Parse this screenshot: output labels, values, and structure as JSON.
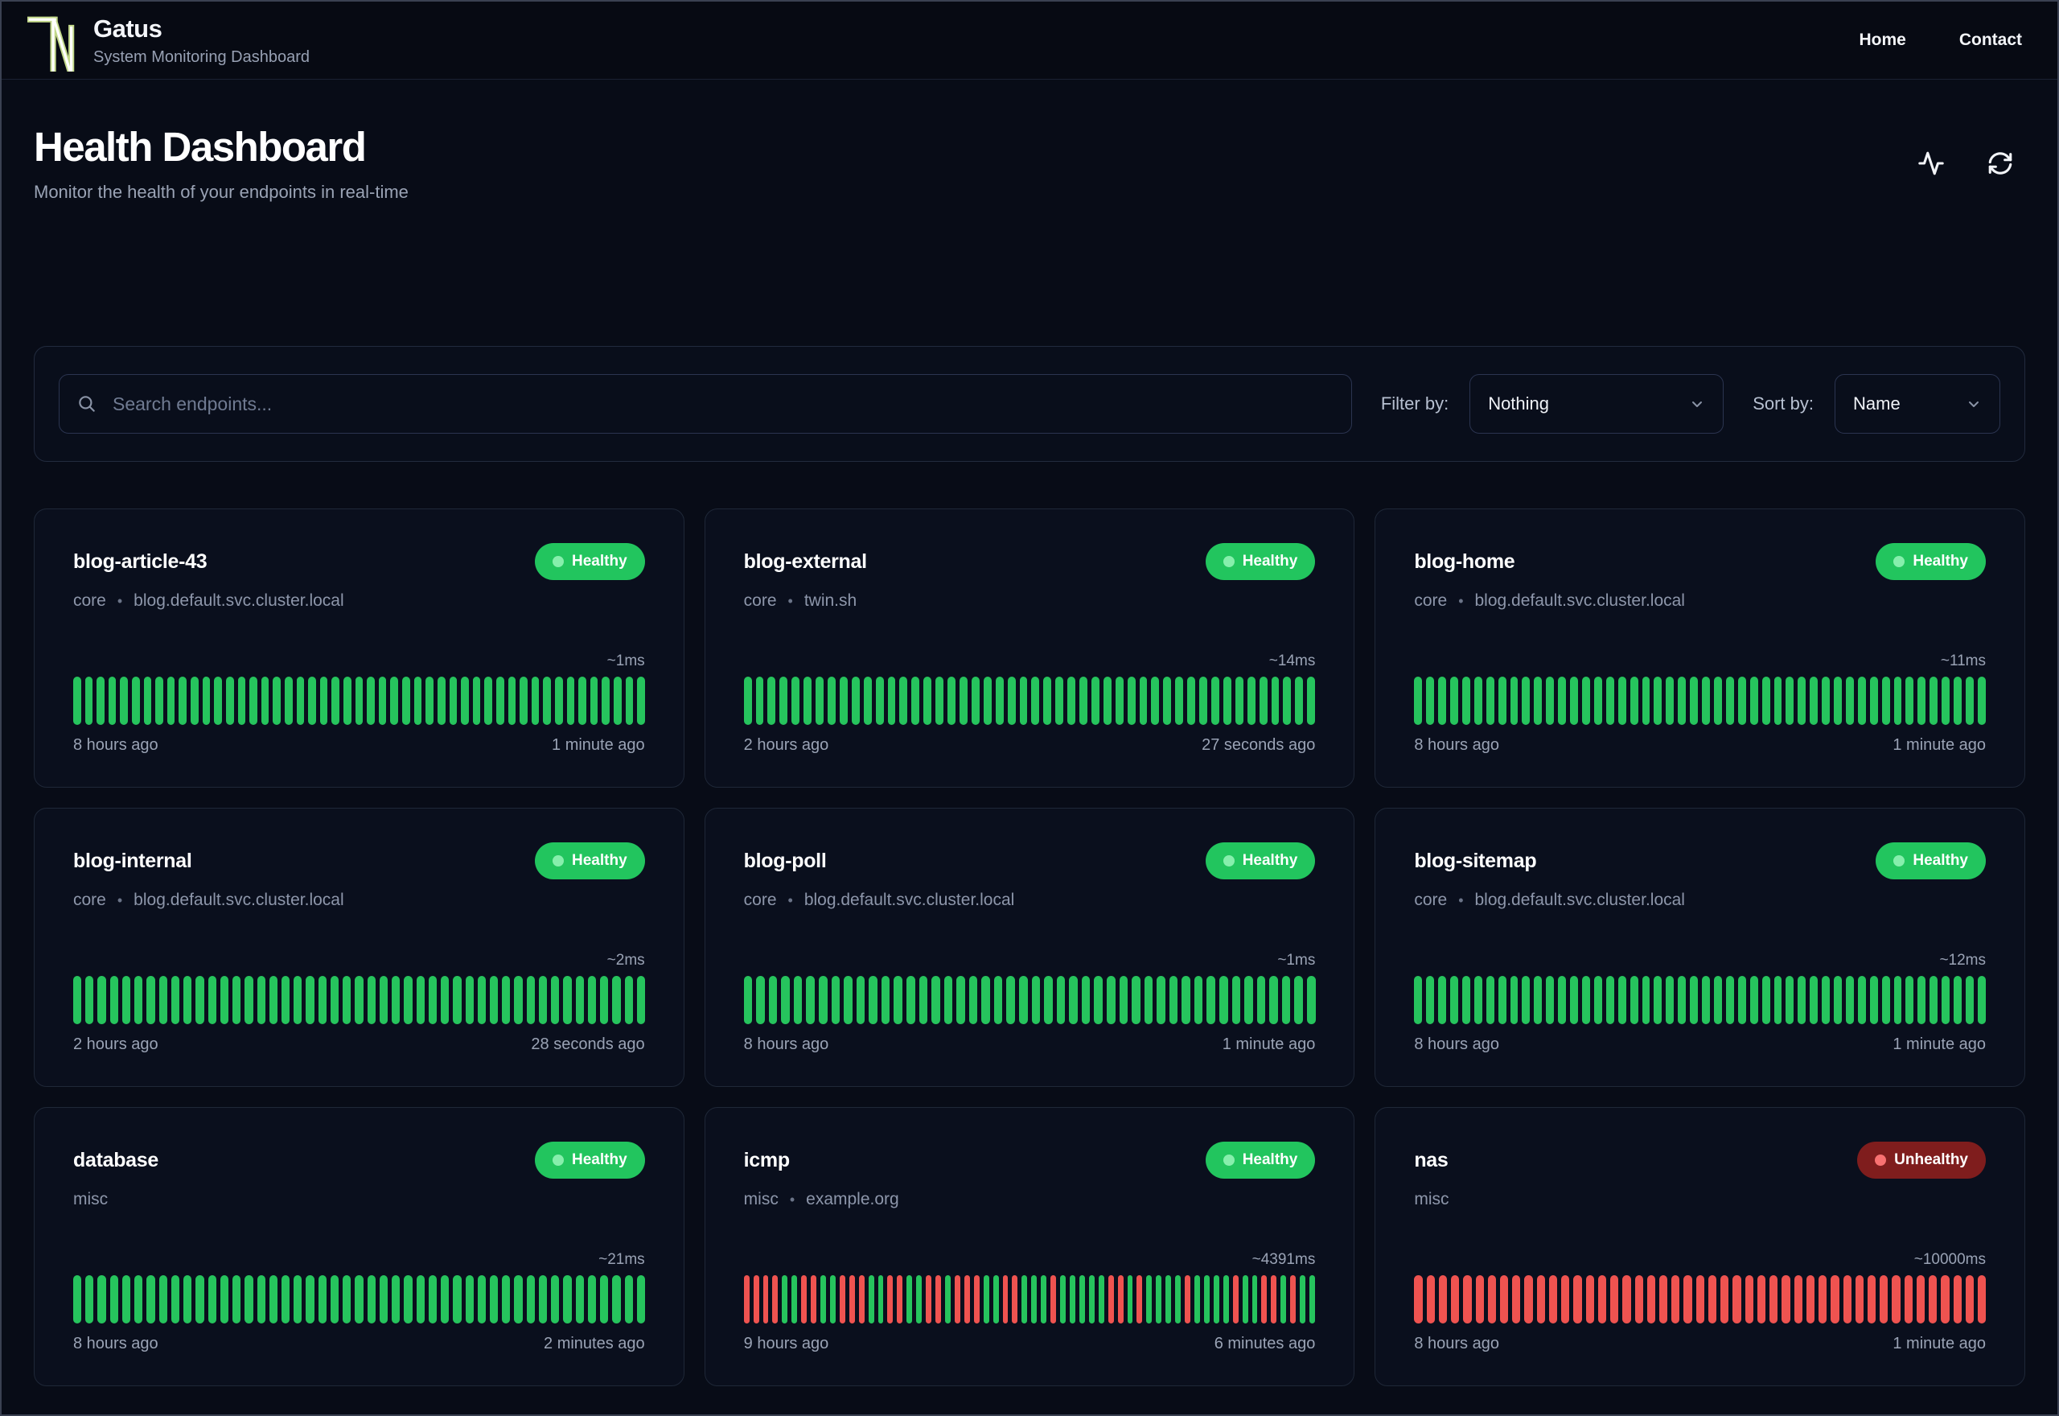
{
  "brand": {
    "name": "Gatus",
    "tagline": "System Monitoring Dashboard"
  },
  "nav": [
    {
      "label": "Home"
    },
    {
      "label": "Contact"
    }
  ],
  "page": {
    "title": "Health Dashboard",
    "subtitle": "Monitor the health of your endpoints in real-time"
  },
  "icons": {
    "logo": "gatus-tn-logo",
    "header": [
      "activity-icon",
      "refresh-icon"
    ],
    "search": "search-icon",
    "select_chevron": "chevron-down-icon"
  },
  "toolbar": {
    "search_placeholder": "Search endpoints...",
    "filter_label": "Filter by:",
    "filter_value": "Nothing",
    "sort_label": "Sort by:",
    "sort_value": "Name"
  },
  "meta_separator": "•",
  "colors": {
    "healthy_badge_bg": "#22c55e",
    "healthy_dot": "#86efac",
    "unhealthy_badge_bg": "#7f1d1d",
    "unhealthy_dot": "#f87171",
    "bar_up": "#26c45d",
    "bar_down": "#ef5350",
    "logo_outline": "#c3d98b"
  },
  "cards": [
    {
      "name": "blog-article-43",
      "status": "Healthy",
      "group": "core",
      "target": "blog.default.svc.cluster.local",
      "response_time": "~1ms",
      "oldest": "8 hours ago",
      "newest": "1 minute ago",
      "history": "ggggggggggggggggggggggggggggggggggggggggggggggggg"
    },
    {
      "name": "blog-external",
      "status": "Healthy",
      "group": "core",
      "target": "twin.sh",
      "response_time": "~14ms",
      "oldest": "2 hours ago",
      "newest": "27 seconds ago",
      "history": "gggggggggggggggggggggggggggggggggggggggggggggggg"
    },
    {
      "name": "blog-home",
      "status": "Healthy",
      "group": "core",
      "target": "blog.default.svc.cluster.local",
      "response_time": "~11ms",
      "oldest": "8 hours ago",
      "newest": "1 minute ago",
      "history": "gggggggggggggggggggggggggggggggggggggggggggggggg"
    },
    {
      "name": "blog-internal",
      "status": "Healthy",
      "group": "core",
      "target": "blog.default.svc.cluster.local",
      "response_time": "~2ms",
      "oldest": "2 hours ago",
      "newest": "28 seconds ago",
      "history": "ggggggggggggggggggggggggggggggggggggggggggggggg"
    },
    {
      "name": "blog-poll",
      "status": "Healthy",
      "group": "core",
      "target": "blog.default.svc.cluster.local",
      "response_time": "~1ms",
      "oldest": "8 hours ago",
      "newest": "1 minute ago",
      "history": "gggggggggggggggggggggggggggggggggggggggggggggg"
    },
    {
      "name": "blog-sitemap",
      "status": "Healthy",
      "group": "core",
      "target": "blog.default.svc.cluster.local",
      "response_time": "~12ms",
      "oldest": "8 hours ago",
      "newest": "1 minute ago",
      "history": "gggggggggggggggggggggggggggggggggggggggggggggggg"
    },
    {
      "name": "database",
      "status": "Healthy",
      "group": "misc",
      "target": null,
      "response_time": "~21ms",
      "oldest": "8 hours ago",
      "newest": "2 minutes ago",
      "history": "ggggggggggggggggggggggggggggggggggggggggggggggg"
    },
    {
      "name": "icmp",
      "status": "Healthy",
      "group": "misc",
      "target": "example.org",
      "response_time": "~4391ms",
      "oldest": "9 hours ago",
      "newest": "6 minutes ago",
      "history": "rrrrggrrggrrrggrrggrrgrrrggrrgggrgggggrrgrggggrggggrggrrgrgg"
    },
    {
      "name": "nas",
      "status": "Unhealthy",
      "group": "misc",
      "target": null,
      "response_time": "~10000ms",
      "oldest": "8 hours ago",
      "newest": "1 minute ago",
      "history": "rrrrrrrrrrrrrrrrrrrrrrrrrrrrrrrrrrrrrrrrrrrrrrr"
    }
  ]
}
